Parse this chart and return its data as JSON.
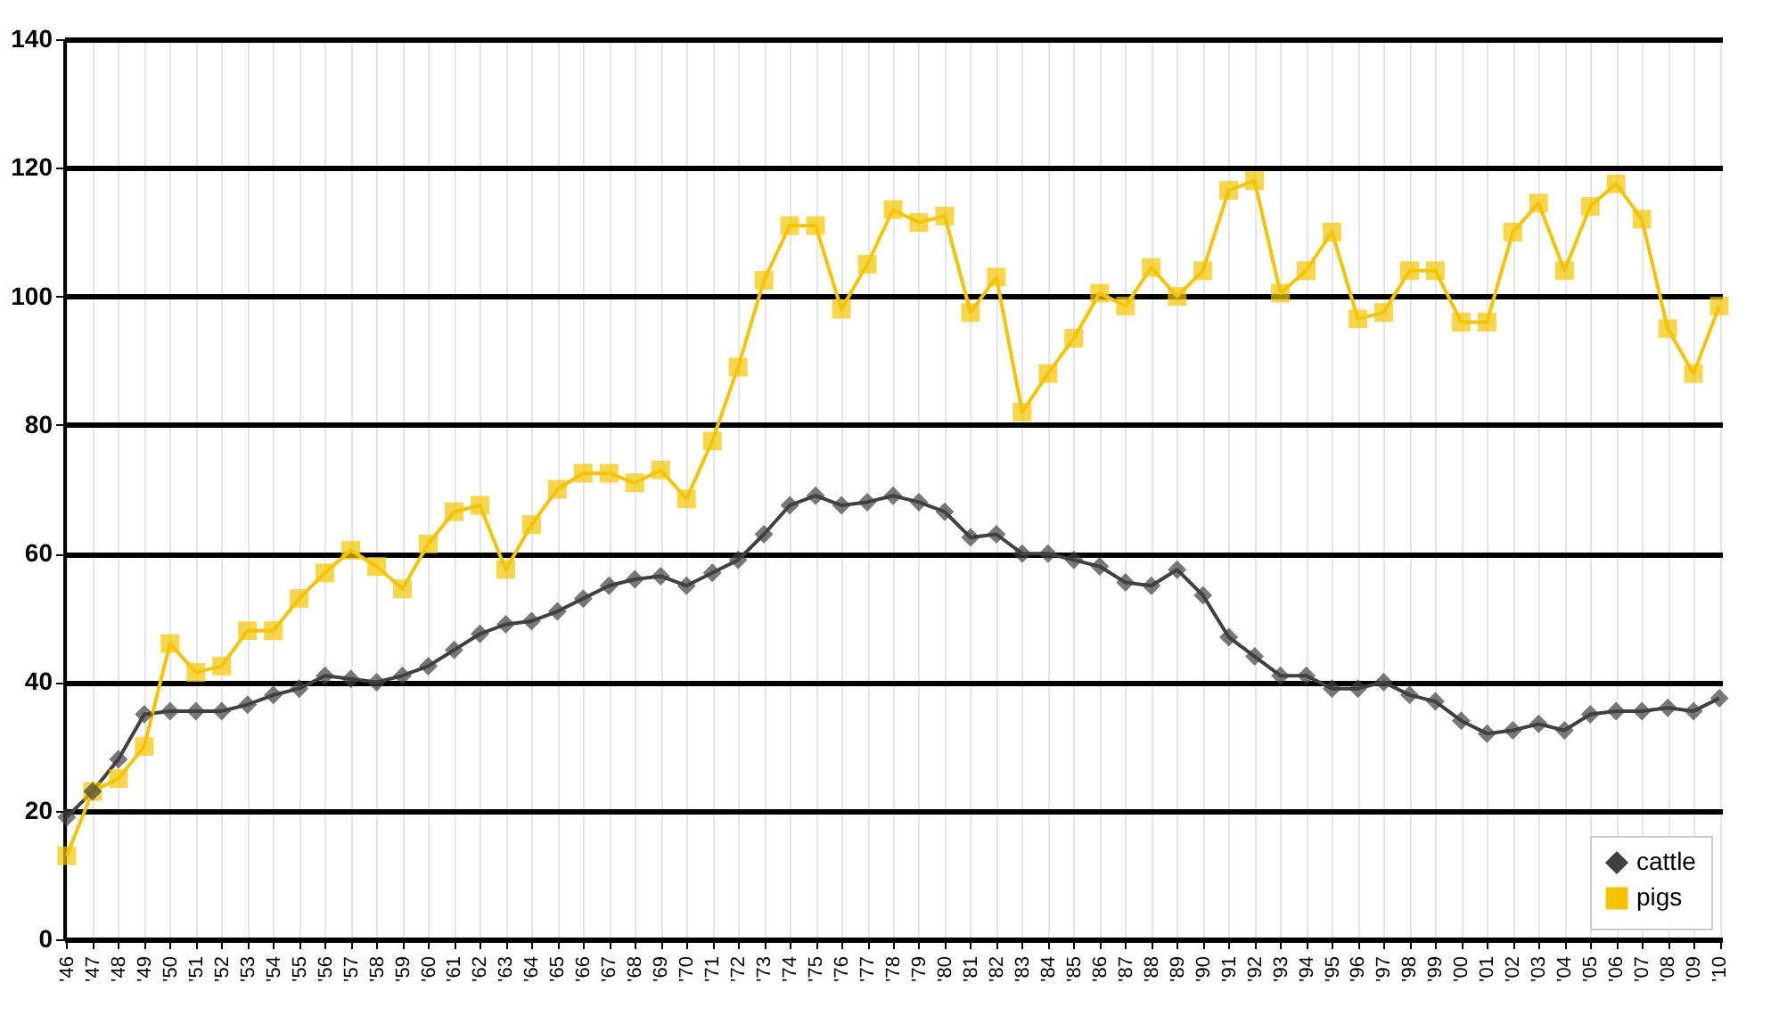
{
  "chart_data": {
    "type": "line",
    "categories": [
      "'46",
      "'47",
      "'48",
      "'49",
      "'50",
      "'51",
      "'52",
      "'53",
      "'54",
      "'55",
      "'56",
      "'57",
      "'58",
      "'59",
      "'60",
      "'61",
      "'62",
      "'63",
      "'64",
      "'65",
      "'66",
      "'67",
      "'68",
      "'69",
      "'70",
      "'71",
      "'72",
      "'73",
      "'74",
      "'75",
      "'76",
      "'77",
      "'78",
      "'79",
      "'80",
      "'81",
      "'82",
      "'83",
      "'84",
      "'85",
      "'86",
      "'87",
      "'88",
      "'89",
      "'90",
      "'91",
      "'92",
      "'93",
      "'94",
      "'95",
      "'96",
      "'97",
      "'98",
      "'99",
      "'00",
      "'01",
      "'02",
      "'03",
      "'04",
      "'05",
      "'06",
      "'07",
      "'08",
      "'09",
      "'10"
    ],
    "series": [
      {
        "name": "cattle",
        "color": "#404040",
        "marker": "diamond",
        "values": [
          19,
          23,
          28,
          35,
          35.5,
          35.5,
          35.5,
          36.5,
          38,
          39,
          41,
          40.5,
          40,
          41,
          42.5,
          45,
          47.5,
          49,
          49.5,
          51,
          53,
          55,
          56,
          56.5,
          55,
          57,
          59,
          63,
          67.5,
          69,
          67.5,
          68,
          69,
          68,
          66.5,
          62.5,
          63,
          60,
          60,
          59,
          58,
          55.5,
          55,
          57.5,
          53.5,
          47,
          44,
          41,
          41,
          39,
          39,
          40,
          38,
          37,
          34,
          32,
          32.5,
          33.5,
          32.5,
          35,
          35.5,
          35.5,
          36,
          35.5,
          37.5
        ]
      },
      {
        "name": "pigs",
        "color": "#f5c400",
        "marker": "square",
        "values": [
          13,
          23,
          25,
          30,
          46,
          41.5,
          42.5,
          48,
          48,
          53,
          57,
          60.5,
          58,
          54.5,
          61.5,
          66.5,
          67.5,
          57.5,
          64.5,
          70,
          72.5,
          72.5,
          71,
          73,
          68.5,
          77.5,
          89,
          102.5,
          111,
          111,
          98,
          105,
          113.5,
          111.5,
          112.5,
          97.5,
          103,
          82,
          88,
          93.5,
          100.5,
          98.5,
          104.5,
          100,
          104,
          116.5,
          118,
          100.5,
          104,
          110,
          96.5,
          97.5,
          104,
          104,
          96,
          96,
          110,
          114.5,
          104,
          114,
          117.5,
          112,
          95,
          88,
          98.5
        ]
      }
    ],
    "ylim": [
      0,
      140
    ],
    "yticks": [
      0,
      20,
      40,
      60,
      80,
      100,
      120,
      140
    ],
    "grid": true,
    "legend": "bottom right",
    "line_style": "solid"
  }
}
